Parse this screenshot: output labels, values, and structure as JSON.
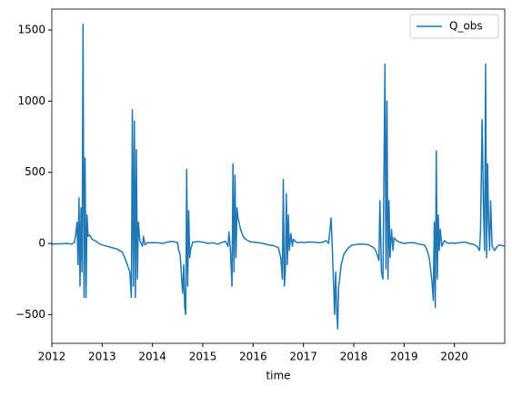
{
  "chart_data": {
    "type": "line",
    "xlabel": "time",
    "x": [
      2012,
      2012.1,
      2012.2,
      2012.3,
      2012.4,
      2012.45,
      2012.48,
      2012.5,
      2012.52,
      2012.54,
      2012.56,
      2012.58,
      2012.6,
      2012.62,
      2012.64,
      2012.66,
      2012.68,
      2012.7,
      2012.72,
      2012.75,
      2012.8,
      2012.85,
      2012.9,
      2012.95,
      2013,
      2013.1,
      2013.2,
      2013.3,
      2013.4,
      2013.45,
      2013.5,
      2013.55,
      2013.58,
      2013.6,
      2013.62,
      2013.64,
      2013.66,
      2013.68,
      2013.7,
      2013.72,
      2013.75,
      2013.8,
      2013.82,
      2013.85,
      2013.9,
      2013.95,
      2014,
      2014.1,
      2014.2,
      2014.3,
      2014.4,
      2014.5,
      2014.52,
      2014.55,
      2014.58,
      2014.6,
      2014.62,
      2014.64,
      2014.66,
      2014.68,
      2014.7,
      2014.72,
      2014.74,
      2014.76,
      2014.8,
      2014.85,
      2014.9,
      2014.95,
      2015,
      2015.1,
      2015.2,
      2015.3,
      2015.4,
      2015.45,
      2015.5,
      2015.52,
      2015.55,
      2015.58,
      2015.6,
      2015.62,
      2015.64,
      2015.66,
      2015.68,
      2015.7,
      2015.75,
      2015.8,
      2015.85,
      2015.9,
      2015.95,
      2016,
      2016.1,
      2016.2,
      2016.3,
      2016.4,
      2016.5,
      2016.55,
      2016.58,
      2016.6,
      2016.62,
      2016.64,
      2016.66,
      2016.68,
      2016.7,
      2016.72,
      2016.75,
      2016.78,
      2016.8,
      2016.85,
      2016.9,
      2016.95,
      2017,
      2017.1,
      2017.2,
      2017.3,
      2017.4,
      2017.45,
      2017.5,
      2017.55,
      2017.58,
      2017.6,
      2017.62,
      2017.64,
      2017.66,
      2017.68,
      2017.7,
      2017.72,
      2017.75,
      2017.8,
      2017.85,
      2017.9,
      2017.95,
      2018,
      2018.1,
      2018.2,
      2018.3,
      2018.4,
      2018.45,
      2018.5,
      2018.52,
      2018.55,
      2018.58,
      2018.6,
      2018.62,
      2018.64,
      2018.66,
      2018.68,
      2018.7,
      2018.72,
      2018.75,
      2018.78,
      2018.8,
      2018.85,
      2018.9,
      2018.95,
      2019,
      2019.1,
      2019.2,
      2019.3,
      2019.4,
      2019.45,
      2019.5,
      2019.55,
      2019.58,
      2019.6,
      2019.62,
      2019.64,
      2019.66,
      2019.68,
      2019.7,
      2019.72,
      2019.75,
      2019.8,
      2019.85,
      2019.9,
      2019.95,
      2020,
      2020.1,
      2020.2,
      2020.3,
      2020.4,
      2020.45,
      2020.5,
      2020.52,
      2020.55,
      2020.58,
      2020.6,
      2020.62,
      2020.64,
      2020.66,
      2020.68,
      2020.7,
      2020.72,
      2020.75,
      2020.8,
      2020.85,
      2020.9,
      2020.95,
      2020.99
    ],
    "series": [
      {
        "name": "Q_obs",
        "color": "#1f77b4",
        "values": [
          -5,
          -3,
          -2,
          0,
          -5,
          10,
          80,
          150,
          -150,
          320,
          -300,
          250,
          -200,
          1540,
          -380,
          600,
          -380,
          200,
          50,
          60,
          30,
          20,
          10,
          -5,
          -10,
          -20,
          -30,
          -40,
          -60,
          -100,
          -150,
          -200,
          -380,
          940,
          -300,
          860,
          -380,
          660,
          -250,
          150,
          20,
          -20,
          50,
          -10,
          5,
          5,
          5,
          5,
          0,
          10,
          15,
          5,
          -50,
          -80,
          -250,
          -350,
          -150,
          -450,
          -500,
          520,
          -300,
          230,
          -100,
          -40,
          10,
          10,
          15,
          10,
          10,
          0,
          5,
          -5,
          10,
          15,
          -20,
          80,
          -50,
          -300,
          560,
          -200,
          480,
          -100,
          250,
          180,
          100,
          50,
          30,
          20,
          10,
          10,
          5,
          0,
          -10,
          -15,
          -30,
          -100,
          -250,
          450,
          -300,
          -200,
          350,
          -150,
          200,
          -50,
          70,
          -20,
          30,
          10,
          5,
          10,
          5,
          10,
          10,
          5,
          10,
          20,
          0,
          180,
          -100,
          -300,
          -500,
          -200,
          -450,
          -600,
          -300,
          -250,
          -150,
          -80,
          -50,
          -30,
          -15,
          -10,
          -5,
          -5,
          -10,
          -30,
          -60,
          -120,
          300,
          -200,
          -250,
          500,
          1260,
          -180,
          1000,
          -250,
          300,
          -100,
          100,
          -50,
          40,
          20,
          10,
          5,
          0,
          5,
          5,
          -5,
          -10,
          -40,
          -100,
          -250,
          -400,
          150,
          -450,
          650,
          -250,
          200,
          -50,
          100,
          -20,
          20,
          5,
          0,
          5,
          0,
          5,
          10,
          0,
          -10,
          -20,
          -50,
          100,
          870,
          200,
          -50,
          1260,
          -100,
          560,
          150,
          -50,
          300,
          -20,
          -50,
          -20,
          -10,
          -15,
          -20
        ]
      }
    ],
    "xlim": [
      2012,
      2021
    ],
    "xticks": [
      2012,
      2013,
      2014,
      2015,
      2016,
      2017,
      2018,
      2019,
      2020
    ],
    "ylim": [
      -702,
      1647
    ],
    "yticks": [
      {
        "value": -500,
        "label": "−500"
      },
      0,
      500,
      1000,
      1500
    ],
    "legend": "upper right",
    "grid": false
  }
}
